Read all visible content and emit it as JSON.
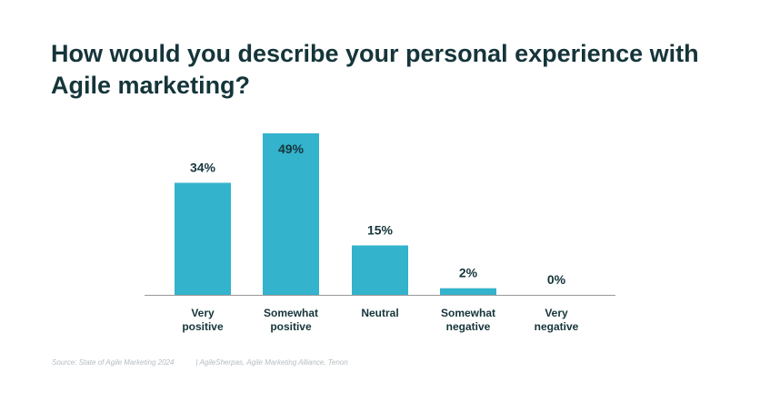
{
  "title": "How would you describe your personal experience with Agile marketing?",
  "source": {
    "left": "Source: State of Agile Marketing 2024",
    "right": "| AgileSherpas, Agile Marketing Alliance, Tenon"
  },
  "colors": {
    "bar": "#33b3cc",
    "text": "#15353a",
    "baseline": "#999999"
  },
  "chart_data": {
    "type": "bar",
    "categories": [
      [
        "Very",
        "positive"
      ],
      [
        "Somewhat",
        "positive"
      ],
      [
        "Neutral"
      ],
      [
        "Somewhat",
        "negative"
      ],
      [
        "Very",
        "negative"
      ]
    ],
    "values": [
      34,
      49,
      15,
      2,
      0
    ],
    "labels": [
      "34%",
      "49%",
      "15%",
      "2%",
      "0%"
    ],
    "ylim": [
      0,
      49
    ],
    "grid": false
  }
}
